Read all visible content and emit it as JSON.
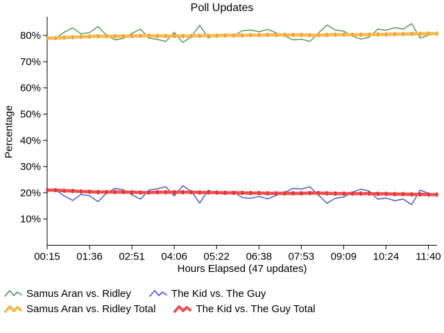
{
  "title": "Poll Updates",
  "chart_data": {
    "type": "line",
    "title": "Poll Updates",
    "xlabel": "Hours Elapsed (47 updates)",
    "ylabel": "Percentage",
    "update_count": 47,
    "x_tick_labels": [
      "00:15",
      "01:36",
      "02:51",
      "04:06",
      "05:22",
      "06:38",
      "07:53",
      "09:09",
      "10:24",
      "11:40"
    ],
    "y_tick_labels": [
      "10%",
      "20%",
      "30%",
      "40%",
      "50%",
      "60%",
      "70%",
      "80%"
    ],
    "ylim": [
      0,
      87
    ],
    "grid": false,
    "legend_position": "bottom-left",
    "series": [
      {
        "name": "Samus Aran vs. Ridley",
        "color": "#4a9a48",
        "style": "thin",
        "values": [
          79.3,
          78.9,
          81.2,
          82.9,
          80.6,
          81.1,
          83.4,
          80.1,
          78.3,
          78.9,
          80.8,
          82.4,
          79.0,
          78.5,
          77.7,
          81.2,
          77.3,
          79.5,
          83.9,
          79.0,
          80.3,
          80.5,
          79.7,
          81.8,
          82.1,
          81.4,
          82.3,
          81.0,
          79.9,
          78.3,
          78.6,
          77.7,
          80.9,
          84.0,
          82.1,
          81.6,
          79.8,
          78.6,
          79.4,
          82.4,
          82.0,
          83.0,
          82.4,
          84.5,
          79.0,
          80.2,
          80.6
        ]
      },
      {
        "name": "The Kid vs. The Guy",
        "color": "#4150d0",
        "style": "thin",
        "values": [
          20.7,
          21.1,
          18.8,
          17.1,
          19.4,
          18.9,
          16.6,
          19.9,
          21.7,
          21.1,
          19.2,
          17.6,
          21.0,
          21.5,
          22.3,
          18.8,
          22.7,
          20.5,
          16.1,
          21.0,
          19.7,
          19.5,
          20.3,
          18.2,
          17.9,
          18.6,
          17.7,
          19.0,
          20.1,
          21.7,
          21.4,
          22.3,
          19.1,
          16.0,
          17.9,
          18.4,
          20.2,
          21.4,
          20.6,
          17.6,
          18.0,
          17.0,
          17.6,
          15.5,
          21.0,
          19.8,
          19.4
        ]
      },
      {
        "name": "Samus Aran vs. Ridley Total",
        "color": "#f8ba4e",
        "marker_color": "#eca33c",
        "style": "thick",
        "values": [
          79.0,
          79.0,
          79.2,
          79.3,
          79.5,
          79.6,
          79.7,
          79.7,
          79.7,
          79.7,
          79.8,
          79.9,
          79.9,
          79.8,
          79.8,
          79.8,
          79.8,
          79.8,
          79.9,
          79.9,
          79.9,
          80.0,
          80.0,
          80.0,
          80.1,
          80.1,
          80.2,
          80.2,
          80.2,
          80.2,
          80.2,
          80.1,
          80.1,
          80.2,
          80.3,
          80.3,
          80.3,
          80.3,
          80.3,
          80.4,
          80.4,
          80.5,
          80.5,
          80.6,
          80.6,
          80.7,
          80.7
        ]
      },
      {
        "name": "The Kid vs. The Guy Total",
        "color": "#ef4e4e",
        "marker_color": "#dd3535",
        "style": "thick",
        "values": [
          21.0,
          21.0,
          20.8,
          20.7,
          20.5,
          20.4,
          20.3,
          20.3,
          20.3,
          20.3,
          20.2,
          20.1,
          20.1,
          20.2,
          20.2,
          20.2,
          20.2,
          20.2,
          20.1,
          20.1,
          20.1,
          20.0,
          20.0,
          20.0,
          19.9,
          19.9,
          19.8,
          19.8,
          19.8,
          19.8,
          19.8,
          19.9,
          19.9,
          19.8,
          19.7,
          19.7,
          19.7,
          19.7,
          19.7,
          19.6,
          19.6,
          19.5,
          19.5,
          19.4,
          19.4,
          19.3,
          19.3
        ]
      }
    ]
  }
}
